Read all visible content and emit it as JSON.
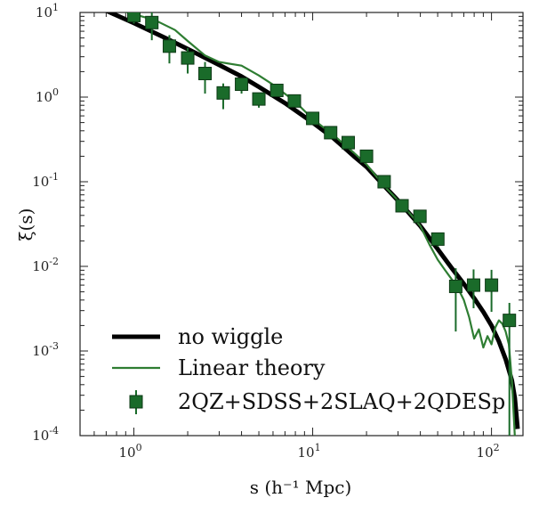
{
  "chart_data": {
    "type": "line",
    "title": "",
    "xlabel": "s (h⁻¹ Mpc)",
    "ylabel": "ξ(s)",
    "xscale": "log",
    "yscale": "log",
    "xlim": [
      0.5,
      150
    ],
    "ylim": [
      0.0001,
      10
    ],
    "grid": false,
    "legend_position": "bottom-left",
    "x_ticks": [
      {
        "value": 1,
        "base": "10",
        "exp": "0"
      },
      {
        "value": 10,
        "base": "10",
        "exp": "1"
      },
      {
        "value": 100,
        "base": "10",
        "exp": "2"
      }
    ],
    "y_ticks": [
      {
        "value": 0.0001,
        "base": "10",
        "exp": "-4"
      },
      {
        "value": 0.001,
        "base": "10",
        "exp": "-3"
      },
      {
        "value": 0.01,
        "base": "10",
        "exp": "-2"
      },
      {
        "value": 0.1,
        "base": "10",
        "exp": "-1"
      },
      {
        "value": 1,
        "base": "10",
        "exp": "0"
      },
      {
        "value": 10,
        "base": "10",
        "exp": "1"
      }
    ],
    "series": [
      {
        "name": "no wiggle",
        "kind": "line",
        "color": "#000000",
        "x": [
          0.5,
          0.7,
          1.0,
          1.5,
          2.0,
          3.0,
          4.0,
          5.0,
          7.0,
          10,
          13,
          17,
          20,
          25,
          30,
          40,
          50,
          60,
          70,
          80,
          90,
          100,
          110,
          120,
          130,
          135,
          140
        ],
        "y": [
          14,
          10.5,
          7.5,
          5.0,
          3.7,
          2.4,
          1.75,
          1.32,
          0.85,
          0.5,
          0.33,
          0.2,
          0.15,
          0.09,
          0.06,
          0.03,
          0.016,
          0.0095,
          0.0062,
          0.0042,
          0.0029,
          0.002,
          0.0013,
          0.0008,
          0.00045,
          0.00028,
          0.00012
        ]
      },
      {
        "name": "Linear theory",
        "kind": "line",
        "color": "#2e7d32",
        "x": [
          0.5,
          0.8,
          1.0,
          1.3,
          1.7,
          2.0,
          2.5,
          3.0,
          4.0,
          5.0,
          6.0,
          8.0,
          10,
          13,
          17,
          20,
          25,
          30,
          35,
          40,
          45,
          50,
          55,
          60,
          65,
          70,
          75,
          80,
          85,
          90,
          95,
          100,
          105,
          110,
          115,
          120,
          125,
          130,
          135
        ],
        "y": [
          16,
          11,
          9.5,
          8.2,
          6.2,
          4.6,
          3.1,
          2.6,
          2.35,
          1.8,
          1.4,
          0.88,
          0.55,
          0.36,
          0.22,
          0.16,
          0.09,
          0.06,
          0.042,
          0.03,
          0.018,
          0.012,
          0.009,
          0.007,
          0.0055,
          0.004,
          0.0025,
          0.0014,
          0.0018,
          0.0011,
          0.0015,
          0.0012,
          0.0019,
          0.0023,
          0.0021,
          0.0017,
          0.0012,
          0.00045,
          0.0001
        ]
      },
      {
        "name": "2QZ+SDSS+2SLAQ+2QDESp",
        "kind": "errorbar",
        "color": "#1a6b2a",
        "points": [
          {
            "x": 1.0,
            "y": 9.2,
            "yerr_low": 7.4,
            "yerr_high": 10
          },
          {
            "x": 1.26,
            "y": 7.6,
            "yerr_low": 4.7,
            "yerr_high": 10.8
          },
          {
            "x": 1.58,
            "y": 4.0,
            "yerr_low": 2.5,
            "yerr_high": 5.4
          },
          {
            "x": 2.0,
            "y": 2.9,
            "yerr_low": 1.9,
            "yerr_high": 3.8
          },
          {
            "x": 2.5,
            "y": 1.9,
            "yerr_low": 1.1,
            "yerr_high": 2.6
          },
          {
            "x": 3.16,
            "y": 1.12,
            "yerr_low": 0.72,
            "yerr_high": 1.45
          },
          {
            "x": 4.0,
            "y": 1.42,
            "yerr_low": 1.1,
            "yerr_high": 1.7
          },
          {
            "x": 5.0,
            "y": 0.95,
            "yerr_low": 0.75,
            "yerr_high": 1.12
          },
          {
            "x": 6.3,
            "y": 1.2,
            "yerr_low": 1.05,
            "yerr_high": 1.35
          },
          {
            "x": 7.9,
            "y": 0.9,
            "yerr_low": 0.8,
            "yerr_high": 1.0
          },
          {
            "x": 10.0,
            "y": 0.56,
            "yerr_low": 0.5,
            "yerr_high": 0.62
          },
          {
            "x": 12.6,
            "y": 0.38,
            "yerr_low": 0.34,
            "yerr_high": 0.42
          },
          {
            "x": 15.8,
            "y": 0.29,
            "yerr_low": 0.26,
            "yerr_high": 0.32
          },
          {
            "x": 20.0,
            "y": 0.2,
            "yerr_low": 0.18,
            "yerr_high": 0.22
          },
          {
            "x": 25.1,
            "y": 0.1,
            "yerr_low": 0.088,
            "yerr_high": 0.112
          },
          {
            "x": 31.6,
            "y": 0.052,
            "yerr_low": 0.044,
            "yerr_high": 0.06
          },
          {
            "x": 39.8,
            "y": 0.039,
            "yerr_low": 0.033,
            "yerr_high": 0.045
          },
          {
            "x": 50.1,
            "y": 0.021,
            "yerr_low": 0.017,
            "yerr_high": 0.025
          },
          {
            "x": 63.1,
            "y": 0.0058,
            "yerr_low": 0.0017,
            "yerr_high": 0.0095
          },
          {
            "x": 79.4,
            "y": 0.006,
            "yerr_low": 0.0032,
            "yerr_high": 0.0092
          },
          {
            "x": 100.0,
            "y": 0.006,
            "yerr_low": 0.0029,
            "yerr_high": 0.0091
          },
          {
            "x": 125.9,
            "y": 0.0023,
            "yerr_low": 0.0001,
            "yerr_high": 0.0037
          }
        ]
      }
    ]
  }
}
